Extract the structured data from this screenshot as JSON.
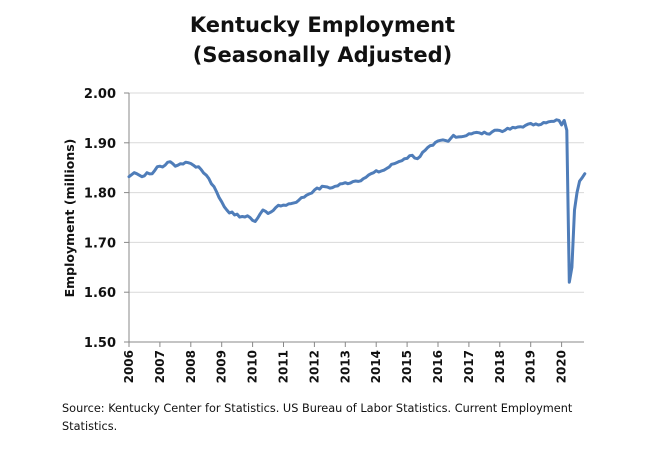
{
  "chart_data": {
    "type": "line",
    "title": "Kentucky Employment\n(Seasonally Adjusted)",
    "title_lines": [
      "Kentucky Employment",
      "(Seasonally Adjusted)"
    ],
    "xlabel": "",
    "ylabel": "Employment (millions)",
    "ylim": [
      1.5,
      2.0
    ],
    "yticks": [
      "1.50",
      "1.60",
      "1.70",
      "1.80",
      "1.90",
      "2.00"
    ],
    "ytick_values": [
      1.5,
      1.6,
      1.7,
      1.8,
      1.9,
      2.0
    ],
    "xticks": [
      "2006",
      "2007",
      "2008",
      "2009",
      "2010",
      "2011",
      "2012",
      "2013",
      "2014",
      "2015",
      "2016",
      "2017",
      "2018",
      "2019",
      "2020"
    ],
    "x_start": "2006-01",
    "x_end": "2020-10",
    "frequency": "monthly",
    "grid": "horizontal",
    "legend": "none",
    "line_color": "#4F7DB9",
    "series": [
      {
        "name": "Kentucky Employment",
        "anchors": [
          [
            "2006-01",
            1.832
          ],
          [
            "2006-03",
            1.84
          ],
          [
            "2006-05",
            1.835
          ],
          [
            "2006-06",
            1.832
          ],
          [
            "2006-08",
            1.84
          ],
          [
            "2006-10",
            1.838
          ],
          [
            "2006-12",
            1.852
          ],
          [
            "2007-03",
            1.855
          ],
          [
            "2007-05",
            1.862
          ],
          [
            "2007-07",
            1.853
          ],
          [
            "2007-09",
            1.858
          ],
          [
            "2007-12",
            1.86
          ],
          [
            "2008-02",
            1.855
          ],
          [
            "2008-04",
            1.852
          ],
          [
            "2008-07",
            1.835
          ],
          [
            "2008-10",
            1.812
          ],
          [
            "2008-12",
            1.79
          ],
          [
            "2009-03",
            1.765
          ],
          [
            "2009-06",
            1.755
          ],
          [
            "2009-09",
            1.752
          ],
          [
            "2009-12",
            1.75
          ],
          [
            "2010-02",
            1.742
          ],
          [
            "2010-05",
            1.765
          ],
          [
            "2010-07",
            1.758
          ],
          [
            "2010-10",
            1.77
          ],
          [
            "2011-01",
            1.775
          ],
          [
            "2011-04",
            1.778
          ],
          [
            "2011-07",
            1.785
          ],
          [
            "2011-10",
            1.795
          ],
          [
            "2012-01",
            1.805
          ],
          [
            "2012-05",
            1.812
          ],
          [
            "2012-08",
            1.81
          ],
          [
            "2012-12",
            1.818
          ],
          [
            "2013-04",
            1.822
          ],
          [
            "2013-08",
            1.828
          ],
          [
            "2013-12",
            1.84
          ],
          [
            "2014-04",
            1.845
          ],
          [
            "2014-08",
            1.858
          ],
          [
            "2014-12",
            1.868
          ],
          [
            "2015-03",
            1.875
          ],
          [
            "2015-05",
            1.868
          ],
          [
            "2015-08",
            1.885
          ],
          [
            "2015-11",
            1.895
          ],
          [
            "2016-02",
            1.905
          ],
          [
            "2016-05",
            1.903
          ],
          [
            "2016-07",
            1.915
          ],
          [
            "2016-10",
            1.912
          ],
          [
            "2017-01",
            1.918
          ],
          [
            "2017-05",
            1.92
          ],
          [
            "2017-08",
            1.918
          ],
          [
            "2017-11",
            1.925
          ],
          [
            "2018-03",
            1.925
          ],
          [
            "2018-07",
            1.93
          ],
          [
            "2018-11",
            1.935
          ],
          [
            "2019-03",
            1.938
          ],
          [
            "2019-07",
            1.94
          ],
          [
            "2019-10",
            1.943
          ],
          [
            "2019-12",
            1.945
          ],
          [
            "2020-01",
            1.936
          ],
          [
            "2020-02",
            1.945
          ],
          [
            "2020-03",
            1.925
          ],
          [
            "2020-04",
            1.62
          ],
          [
            "2020-05",
            1.65
          ],
          [
            "2020-06",
            1.765
          ],
          [
            "2020-07",
            1.8
          ],
          [
            "2020-08",
            1.823
          ],
          [
            "2020-09",
            1.83
          ],
          [
            "2020-10",
            1.838
          ]
        ]
      }
    ],
    "source": "Source: Kentucky Center for Statistics. US Bureau of Labor Statistics. Current Employment Statistics."
  }
}
